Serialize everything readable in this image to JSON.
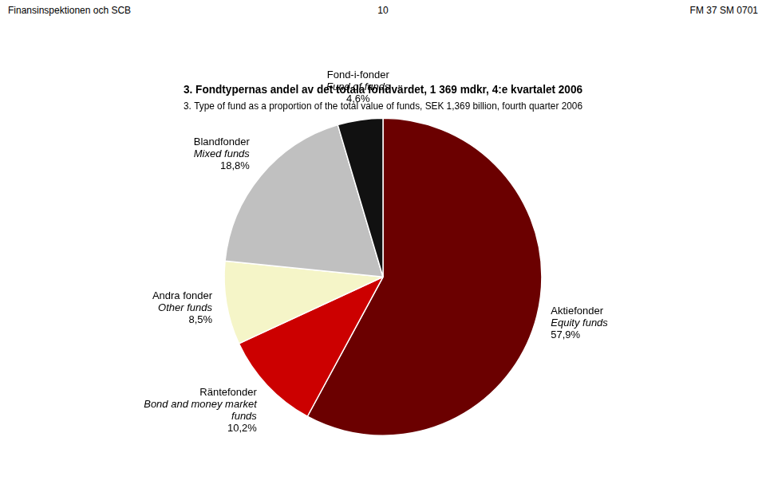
{
  "chart_data": {
    "type": "pie",
    "title": "3. Fondtypernas andel av det totala fondvärdet, 1 369 mdkr, 4:e kvartalet 2006",
    "subtitle": "3. Type of fund as a proportion of the total value of funds, SEK 1,369 billion, fourth quarter 2006",
    "annotations": [
      "Finansinspektionen och SCB",
      "10",
      "FM 37 SM 0701"
    ],
    "categories": [
      [
        "Aktiefonder",
        "Equity funds"
      ],
      [
        "Räntefonder",
        "Bond and money market",
        "funds"
      ],
      [
        "Andra fonder",
        "Other funds"
      ],
      [
        "Blandfonder",
        "Mixed funds"
      ],
      [
        "Fond-i-fonder",
        "Fund of funds"
      ]
    ],
    "values": [
      57.9,
      10.2,
      8.5,
      18.8,
      4.6
    ],
    "value_labels": [
      "57,9%",
      "10,2%",
      "8,5%",
      "18,8%",
      "4,6%"
    ],
    "colors": [
      "#6b0000",
      "#cc0000",
      "#f5f5c8",
      "#c0c0c0",
      "#111111"
    ],
    "data_labels": true,
    "legend": false
  }
}
